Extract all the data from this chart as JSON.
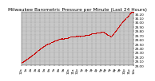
{
  "title": "Milwaukee Barometric Pressure per Minute (Last 24 Hours)",
  "bg_color": "#ffffff",
  "plot_bg_color": "#c8c8c8",
  "line_color": "#cc0000",
  "grid_color_v": "#888888",
  "grid_color_h": "#aaaaaa",
  "ylim": [
    29.0,
    30.25
  ],
  "yticks": [
    29.0,
    29.1,
    29.2,
    29.3,
    29.4,
    29.5,
    29.6,
    29.7,
    29.8,
    29.9,
    30.0,
    30.1,
    30.2
  ],
  "num_points": 1440,
  "title_fontsize": 4.2,
  "tick_fontsize": 3.0,
  "num_xticks": 25
}
